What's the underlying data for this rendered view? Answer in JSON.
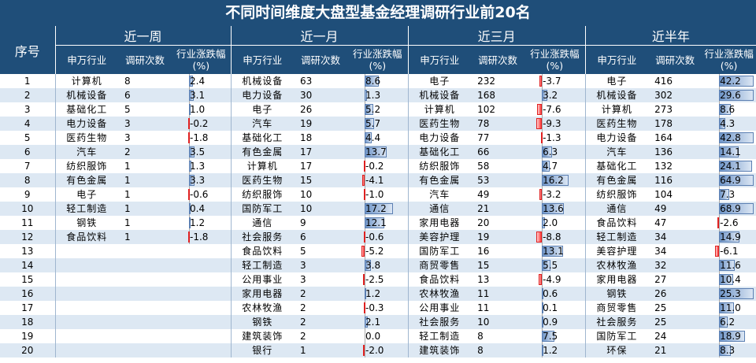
{
  "title": "不同时间维度大盘型基金经理调研行业前20名",
  "header": {
    "seq_label": "序号",
    "periods": [
      "近一周",
      "近一月",
      "近三月",
      "近半年"
    ],
    "col_industry": "申万行业",
    "col_count": "调研次数",
    "col_change": "行业涨跌幅",
    "col_change_unit": "(%)"
  },
  "scale_max_abs": 25,
  "rows": [
    {
      "seq": "1",
      "c": [
        [
          "计算机",
          "8",
          2.4
        ],
        [
          "机械设备",
          "63",
          8.6
        ],
        [
          "电子",
          "232",
          -3.7
        ],
        [
          "电子",
          "416",
          42.2
        ]
      ]
    },
    {
      "seq": "2",
      "c": [
        [
          "机械设备",
          "6",
          3.1
        ],
        [
          "电力设备",
          "30",
          1.3
        ],
        [
          "机械设备",
          "168",
          3.2
        ],
        [
          "机械设备",
          "302",
          29.6
        ]
      ]
    },
    {
      "seq": "3",
      "c": [
        [
          "基础化工",
          "5",
          1.0
        ],
        [
          "电子",
          "26",
          5.2
        ],
        [
          "计算机",
          "102",
          -7.6
        ],
        [
          "计算机",
          "273",
          8.6
        ]
      ]
    },
    {
      "seq": "4",
      "c": [
        [
          "电力设备",
          "3",
          -0.2
        ],
        [
          "汽车",
          "19",
          5.7
        ],
        [
          "医药生物",
          "78",
          -9.3
        ],
        [
          "医药生物",
          "178",
          4.3
        ]
      ]
    },
    {
      "seq": "5",
      "c": [
        [
          "医药生物",
          "3",
          -1.8
        ],
        [
          "基础化工",
          "18",
          4.4
        ],
        [
          "电力设备",
          "77",
          -1.3
        ],
        [
          "电力设备",
          "164",
          42.8
        ]
      ]
    },
    {
      "seq": "6",
      "c": [
        [
          "汽车",
          "2",
          3.5
        ],
        [
          "有色金属",
          "17",
          13.7
        ],
        [
          "基础化工",
          "66",
          6.3
        ],
        [
          "汽车",
          "136",
          14.1
        ]
      ]
    },
    {
      "seq": "7",
      "c": [
        [
          "纺织服饰",
          "1",
          1.3
        ],
        [
          "计算机",
          "17",
          -0.2
        ],
        [
          "纺织服饰",
          "58",
          4.7
        ],
        [
          "基础化工",
          "132",
          24.1
        ]
      ]
    },
    {
      "seq": "8",
      "c": [
        [
          "有色金属",
          "1",
          3.3
        ],
        [
          "医药生物",
          "15",
          -4.1
        ],
        [
          "有色金属",
          "53",
          16.2
        ],
        [
          "有色金属",
          "116",
          64.9
        ]
      ]
    },
    {
      "seq": "9",
      "c": [
        [
          "电子",
          "1",
          -0.6
        ],
        [
          "纺织服饰",
          "10",
          -1.0
        ],
        [
          "汽车",
          "49",
          -3.2
        ],
        [
          "纺织服饰",
          "104",
          7.3
        ]
      ]
    },
    {
      "seq": "10",
      "c": [
        [
          "轻工制造",
          "1",
          0.4
        ],
        [
          "国防军工",
          "10",
          17.2
        ],
        [
          "通信",
          "21",
          13.6
        ],
        [
          "通信",
          "49",
          68.9
        ]
      ]
    },
    {
      "seq": "11",
      "c": [
        [
          "钢铁",
          "1",
          1.2
        ],
        [
          "通信",
          "9",
          12.1
        ],
        [
          "家用电器",
          "20",
          2.0
        ],
        [
          "食品饮料",
          "47",
          -2.6
        ]
      ]
    },
    {
      "seq": "12",
      "c": [
        [
          "食品饮料",
          "1",
          -1.8
        ],
        [
          "社会服务",
          "6",
          -0.6
        ],
        [
          "美容护理",
          "19",
          -8.8
        ],
        [
          "轻工制造",
          "34",
          14.9
        ]
      ]
    },
    {
      "seq": "13",
      "c": [
        null,
        [
          "食品饮料",
          "5",
          -5.2
        ],
        [
          "国防军工",
          "16",
          13.1
        ],
        [
          "美容护理",
          "34",
          -6.1
        ]
      ]
    },
    {
      "seq": "14",
      "c": [
        null,
        [
          "轻工制造",
          "3",
          3.8
        ],
        [
          "商贸零售",
          "15",
          5.5
        ],
        [
          "农林牧渔",
          "32",
          11.6
        ]
      ]
    },
    {
      "seq": "15",
      "c": [
        null,
        [
          "公用事业",
          "3",
          -2.5
        ],
        [
          "食品饮料",
          "13",
          -4.9
        ],
        [
          "家用电器",
          "27",
          10.4
        ]
      ]
    },
    {
      "seq": "16",
      "c": [
        null,
        [
          "家用电器",
          "2",
          1.2
        ],
        [
          "农林牧渔",
          "11",
          0.6
        ],
        [
          "钢铁",
          "26",
          25.3
        ]
      ]
    },
    {
      "seq": "17",
      "c": [
        null,
        [
          "农林牧渔",
          "2",
          -0.3
        ],
        [
          "公用事业",
          "11",
          0.1
        ],
        [
          "商贸零售",
          "25",
          11.0
        ]
      ]
    },
    {
      "seq": "18",
      "c": [
        null,
        [
          "钢铁",
          "2",
          2.1
        ],
        [
          "社会服务",
          "10",
          0.9
        ],
        [
          "社会服务",
          "25",
          6.2
        ]
      ]
    },
    {
      "seq": "19",
      "c": [
        null,
        [
          "建筑装饰",
          "2",
          0.0
        ],
        [
          "轻工制造",
          "8",
          7.5
        ],
        [
          "国防军工",
          "24",
          18.9
        ]
      ]
    },
    {
      "seq": "20",
      "c": [
        null,
        [
          "银行",
          "1",
          -2.0
        ],
        [
          "建筑装饰",
          "8",
          1.2
        ],
        [
          "环保",
          "21",
          8.3
        ]
      ]
    }
  ]
}
